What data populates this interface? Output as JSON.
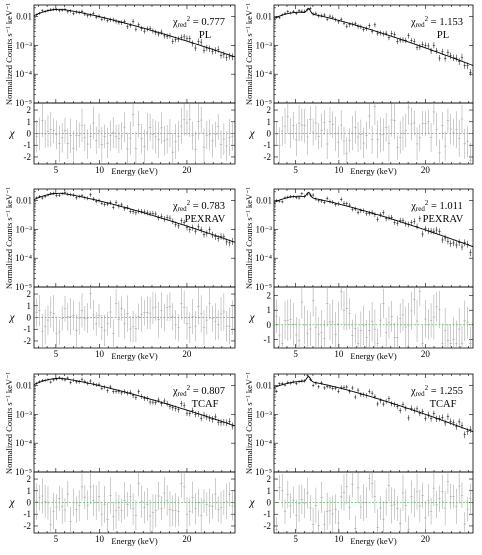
{
  "figure": {
    "x_axis_label": "Energy (keV)",
    "y_axis_label_top": "Normalized Counts s⁻¹ keV⁻¹",
    "y_axis_label_bottom": "χ",
    "data_color": "#000000",
    "residual_data_color": "#9a9a9a",
    "zero_line_color": "#5fbf5f"
  },
  "chart_data": [
    {
      "type": "scatter",
      "row": 1,
      "col": 1,
      "model_label": "PL",
      "chi_value": "0.777",
      "xlim": [
        2.5,
        25.5
      ],
      "x_ticks": [
        "5",
        "10",
        "20"
      ],
      "spectrum": {
        "ylim_log10": [
          -5,
          -1.6
        ],
        "y_ticks": [
          "0.01",
          "10⁻³",
          "10⁻⁴",
          "10⁻⁵"
        ],
        "peak_energy": 5.5,
        "peak_log10": -1.75,
        "end_log10": -3.4,
        "iron_line": false
      },
      "residuals": {
        "ylim": [
          -2.6,
          2.6
        ],
        "y_ticks": [
          "2",
          "1",
          "0",
          "-1",
          "-2"
        ],
        "scatter": 0.8
      }
    },
    {
      "type": "scatter",
      "row": 1,
      "col": 2,
      "model_label": "PL",
      "chi_value": "1.153",
      "xlim": [
        2.5,
        25.5
      ],
      "x_ticks": [
        "5",
        "10",
        "20"
      ],
      "spectrum": {
        "ylim_log10": [
          -5,
          -1.6
        ],
        "y_ticks": [
          "0.01",
          "10⁻³",
          "10⁻⁴",
          "10⁻⁵"
        ],
        "peak_energy": 5.5,
        "peak_log10": -1.85,
        "end_log10": -3.7,
        "iron_line": true
      },
      "residuals": {
        "ylim": [
          -2.6,
          2.6
        ],
        "y_ticks": [
          "2",
          "1",
          "0",
          "-1",
          "-2"
        ],
        "scatter": 0.95
      }
    },
    {
      "type": "scatter",
      "row": 2,
      "col": 1,
      "model_label": "PEXRAV",
      "chi_value": "0.783",
      "xlim": [
        2.5,
        25.5
      ],
      "x_ticks": [
        "5",
        "10",
        "20"
      ],
      "spectrum": {
        "ylim_log10": [
          -5,
          -1.6
        ],
        "y_ticks": [
          "0.01",
          "10⁻³",
          "10⁻⁴",
          "10⁻⁵"
        ],
        "peak_energy": 5.5,
        "peak_log10": -1.75,
        "end_log10": -3.45,
        "iron_line": false
      },
      "residuals": {
        "ylim": [
          -2.6,
          2.6
        ],
        "y_ticks": [
          "2",
          "1",
          "0",
          "-1",
          "-2"
        ],
        "scatter": 0.8
      }
    },
    {
      "type": "scatter",
      "row": 2,
      "col": 2,
      "model_label": "PEXRAV",
      "chi_value": "1.011",
      "xlim": [
        2.5,
        25.5
      ],
      "x_ticks": [
        "5",
        "10",
        "20"
      ],
      "spectrum": {
        "ylim_log10": [
          -5,
          -1.6
        ],
        "y_ticks": [
          "0.01",
          "10⁻³",
          "10⁻⁴",
          "10⁻⁵"
        ],
        "peak_energy": 5.5,
        "peak_log10": -1.85,
        "end_log10": -3.6,
        "iron_line": true
      },
      "residuals": {
        "ylim": [
          -1.6,
          2.6
        ],
        "y_ticks": [
          "2",
          "1",
          "0",
          "-1"
        ],
        "scatter": 0.85
      }
    },
    {
      "type": "scatter",
      "row": 3,
      "col": 1,
      "model_label": "TCAF",
      "chi_value": "0.807",
      "xlim": [
        2.5,
        25.5
      ],
      "x_ticks": [
        "5",
        "10",
        "20"
      ],
      "spectrum": {
        "ylim_log10": [
          -5,
          -1.6
        ],
        "y_ticks": [
          "0.01",
          "10⁻³",
          "10⁻⁴",
          "10⁻⁵"
        ],
        "peak_energy": 5.5,
        "peak_log10": -1.75,
        "end_log10": -3.4,
        "iron_line": false
      },
      "residuals": {
        "ylim": [
          -2.6,
          2.6
        ],
        "y_ticks": [
          "2",
          "1",
          "0",
          "-1",
          "-2"
        ],
        "scatter": 0.8
      }
    },
    {
      "type": "scatter",
      "row": 3,
      "col": 2,
      "model_label": "TCAF",
      "chi_value": "1.255",
      "xlim": [
        2.5,
        25.5
      ],
      "x_ticks": [
        "5",
        "10",
        "20"
      ],
      "spectrum": {
        "ylim_log10": [
          -5,
          -1.6
        ],
        "y_ticks": [
          "0.01",
          "10⁻³",
          "10⁻⁴",
          "10⁻⁵"
        ],
        "peak_energy": 6.2,
        "peak_log10": -1.85,
        "end_log10": -3.6,
        "iron_line": true
      },
      "residuals": {
        "ylim": [
          -2.6,
          2.6
        ],
        "y_ticks": [
          "2",
          "1",
          "0",
          "-1",
          "-2"
        ],
        "scatter": 1.0
      }
    }
  ]
}
